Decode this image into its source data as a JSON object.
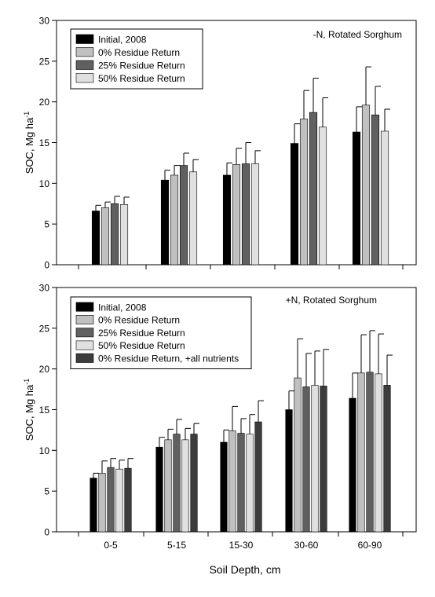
{
  "figure": {
    "xlabel": "Soil Depth, cm",
    "colors": {
      "initial": "#000000",
      "res0": "#c0c0c0",
      "res25": "#606060",
      "res50": "#e0e0e0",
      "res0nut": "#3c3c3c"
    }
  },
  "chart_data": [
    {
      "type": "bar",
      "annotation": "-N, Rotated Sorghum",
      "ylabel_main": "SOC, Mg ha",
      "ylabel_sup": "-1",
      "ylim": [
        0,
        30
      ],
      "yticks": [
        0,
        5,
        10,
        15,
        20,
        25,
        30
      ],
      "grid": false,
      "legend_position": "top-left",
      "categories": [
        "0-5",
        "5-15",
        "15-30",
        "30-60",
        "60-90"
      ],
      "show_category_labels": false,
      "series": [
        {
          "name": "Initial, 2008",
          "color": "#000000",
          "values": [
            6.6,
            10.4,
            11.0,
            14.9,
            16.3
          ],
          "errors": [
            0.7,
            1.2,
            1.5,
            2.4,
            3.1
          ]
        },
        {
          "name": "0% Residue Return",
          "color": "#c0c0c0",
          "values": [
            7.0,
            11.0,
            12.3,
            17.9,
            19.6
          ],
          "errors": [
            0.7,
            1.2,
            2.0,
            3.5,
            4.7
          ]
        },
        {
          "name": "25% Residue Return",
          "color": "#606060",
          "values": [
            7.5,
            12.2,
            12.4,
            18.7,
            18.4
          ],
          "errors": [
            0.9,
            1.5,
            2.6,
            4.2,
            3.5
          ]
        },
        {
          "name": "50% Residue Return",
          "color": "#e0e0e0",
          "values": [
            7.4,
            11.4,
            12.4,
            16.9,
            16.4
          ],
          "errors": [
            0.9,
            1.5,
            1.6,
            3.6,
            2.7
          ]
        }
      ]
    },
    {
      "type": "bar",
      "annotation": "+N, Rotated Sorghum",
      "ylabel_main": "SOC, Mg ha",
      "ylabel_sup": "-1",
      "ylim": [
        0,
        30
      ],
      "yticks": [
        0,
        5,
        10,
        15,
        20,
        25,
        30
      ],
      "grid": false,
      "legend_position": "top-left",
      "categories": [
        "0-5",
        "5-15",
        "15-30",
        "30-60",
        "60-90"
      ],
      "show_category_labels": true,
      "series": [
        {
          "name": "Initial, 2008",
          "color": "#000000",
          "values": [
            6.6,
            10.4,
            11.0,
            15.0,
            16.4
          ],
          "errors": [
            0.6,
            1.2,
            1.5,
            2.3,
            3.1
          ]
        },
        {
          "name": "0% Residue Return",
          "color": "#c0c0c0",
          "values": [
            7.2,
            11.3,
            12.4,
            18.9,
            19.5
          ],
          "errors": [
            1.5,
            1.3,
            3.0,
            4.8,
            4.7
          ]
        },
        {
          "name": "25% Residue Return",
          "color": "#606060",
          "values": [
            7.9,
            12.0,
            12.1,
            17.8,
            19.6
          ],
          "errors": [
            1.1,
            1.8,
            1.8,
            4.1,
            5.1
          ]
        },
        {
          "name": "50% Residue Return",
          "color": "#e0e0e0",
          "values": [
            7.7,
            11.3,
            12.0,
            18.0,
            19.4
          ],
          "errors": [
            1.1,
            1.4,
            2.4,
            4.2,
            4.9
          ]
        },
        {
          "name": "0% Residue Return, +all nutrients",
          "color": "#3c3c3c",
          "values": [
            7.8,
            12.0,
            13.5,
            17.9,
            18.0
          ],
          "errors": [
            1.2,
            1.3,
            2.6,
            4.5,
            3.7
          ]
        }
      ]
    }
  ]
}
